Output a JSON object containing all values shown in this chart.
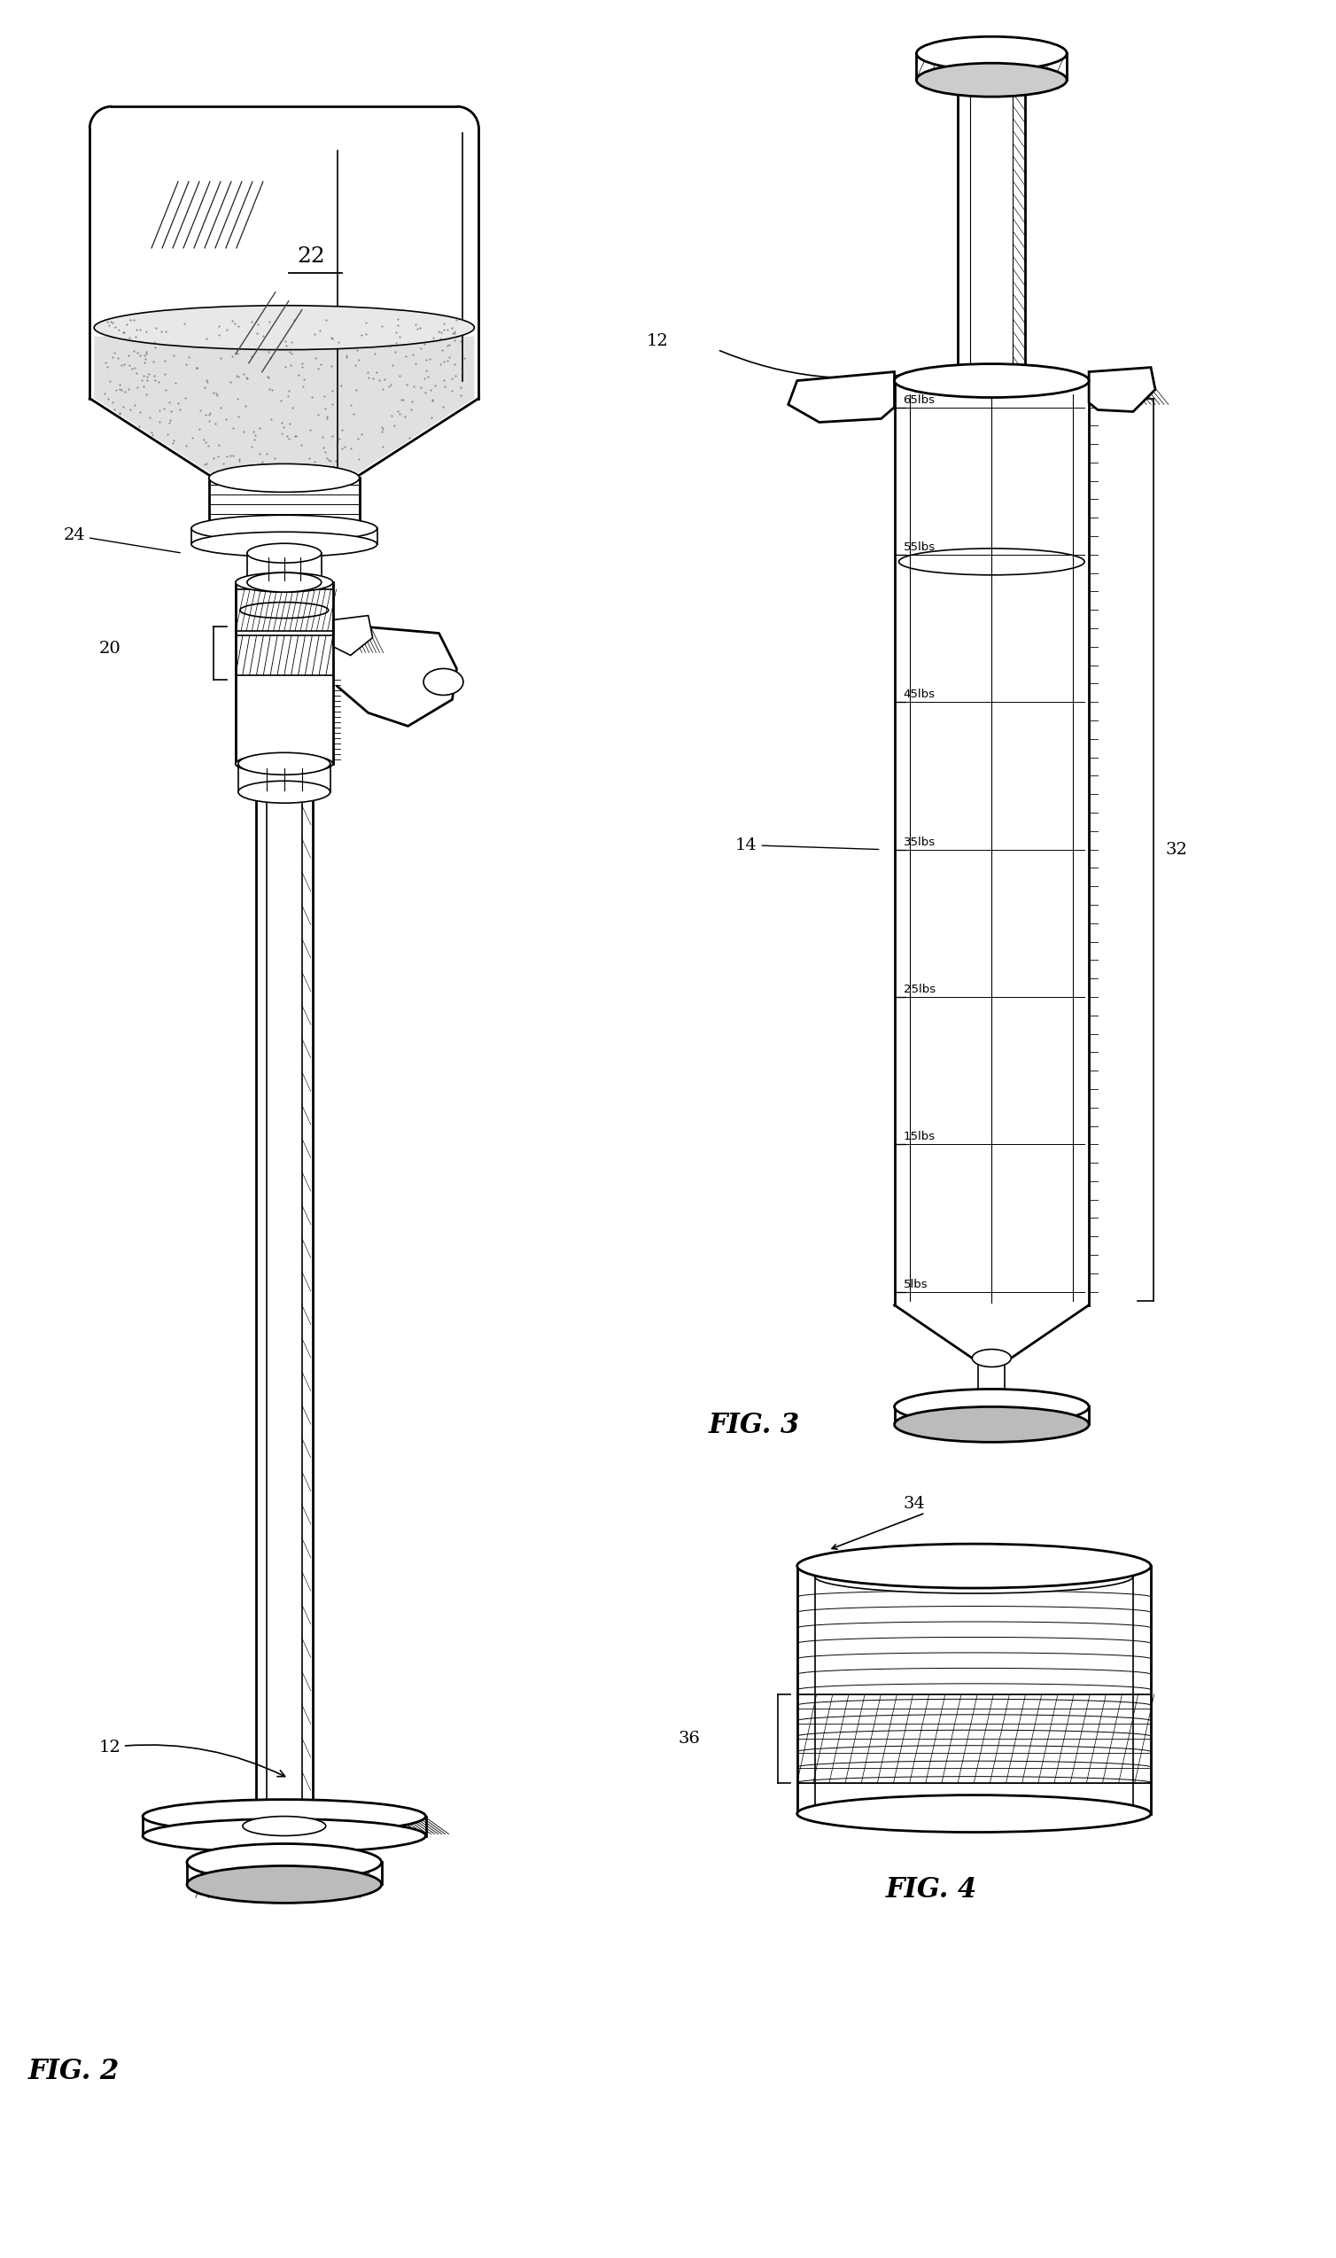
{
  "background_color": "#ffffff",
  "fig_width": 15.08,
  "fig_height": 25.48,
  "labels": {
    "fig2_label": "FIG. 2",
    "fig3_label": "FIG. 3",
    "fig4_label": "FIG. 4",
    "ref_22": "22",
    "ref_24": "24",
    "ref_20": "20",
    "ref_12a": "12",
    "ref_12b": "12",
    "ref_14": "14",
    "ref_32": "32",
    "ref_34": "34",
    "ref_36": "36",
    "weights": [
      "65lbs",
      "55lbs",
      "45lbs",
      "35lbs",
      "25lbs",
      "15lbs",
      "5lbs"
    ]
  },
  "line_color": "#000000",
  "lw": 1.2,
  "lw_thick": 2.0,
  "lw_thin": 0.6
}
